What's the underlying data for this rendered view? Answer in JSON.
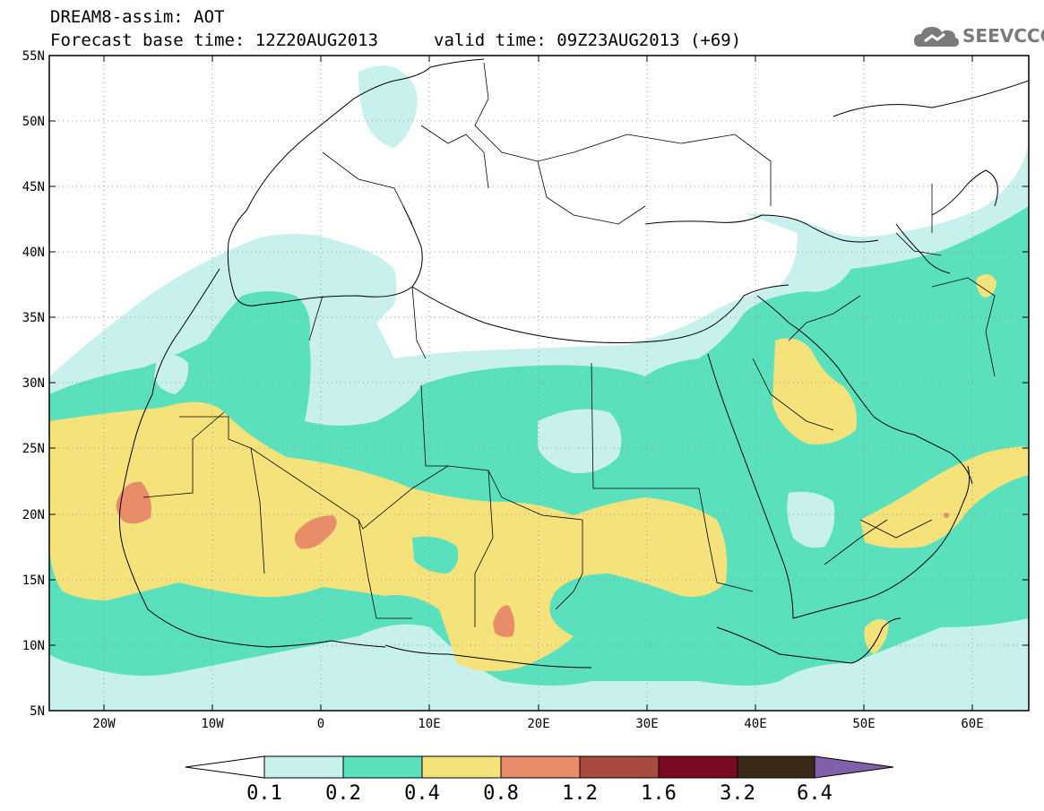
{
  "header": {
    "title": "DREAM8-assim: AOT",
    "base_time": "Forecast base time: 12Z20AUG2013",
    "valid_time": "valid time: 09Z23AUG2013 (+69)"
  },
  "logo": {
    "text": "SEEVCCC",
    "icon": "cloud-logo-icon"
  },
  "map": {
    "lat_ticks": [
      "55N",
      "50N",
      "45N",
      "40N",
      "35N",
      "30N",
      "25N",
      "20N",
      "15N",
      "10N",
      "5N"
    ],
    "lon_ticks": [
      "20W",
      "10W",
      "0",
      "10E",
      "20E",
      "30E",
      "40E",
      "50E",
      "60E"
    ],
    "gridlines": "dotted",
    "land_fill": "#ffffff"
  },
  "legend": {
    "labels": [
      "0.1",
      "0.2",
      "0.4",
      "0.8",
      "1.2",
      "1.6",
      "3.2",
      "6.4"
    ],
    "colors": [
      "#ffffff",
      "#c8f0ec",
      "#5ae0bd",
      "#f5e27a",
      "#e88c6a",
      "#a84a3e",
      "#7a0a24",
      "#3c2a18",
      "#8060a8"
    ]
  }
}
